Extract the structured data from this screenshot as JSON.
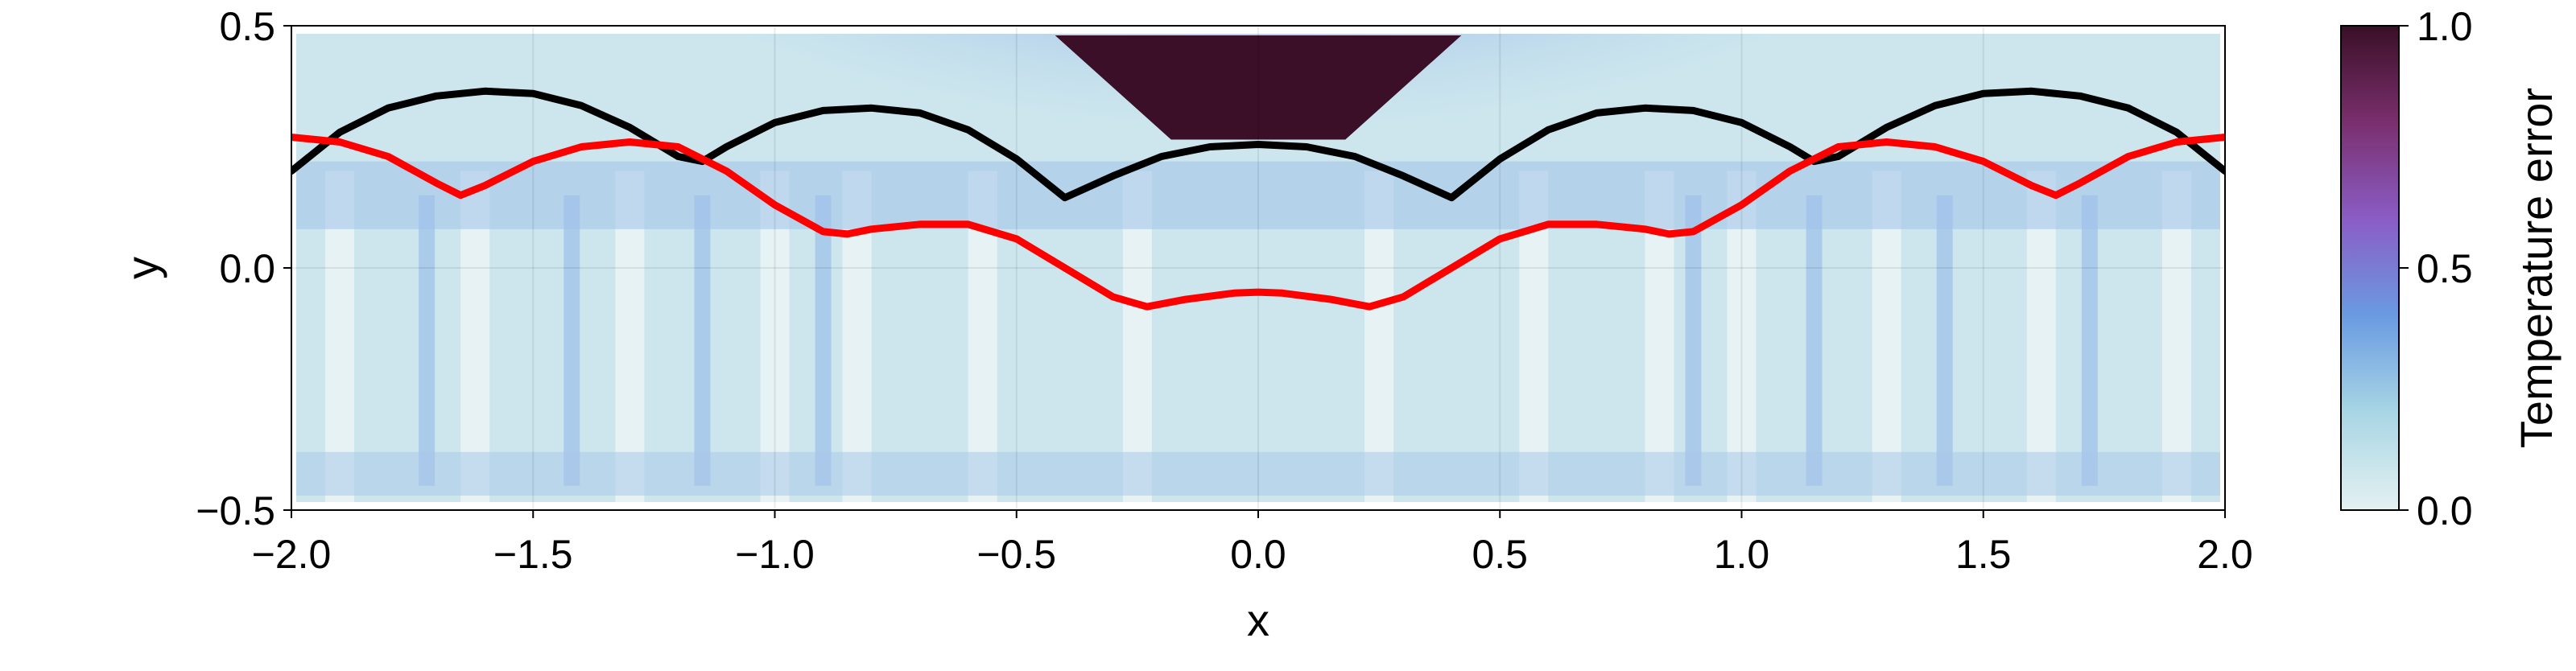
{
  "chart_data": {
    "type": "heatmap",
    "title": "",
    "xlabel": "x",
    "ylabel": "y",
    "xlim": [
      -2.0,
      2.0
    ],
    "ylim": [
      -0.5,
      0.5
    ],
    "x_ticks": [
      -2.0,
      -1.5,
      -1.0,
      -0.5,
      0.0,
      0.5,
      1.0,
      1.5,
      2.0
    ],
    "y_ticks": [
      -0.5,
      0.0,
      0.5
    ],
    "x_tick_labels": [
      "−2.0",
      "−1.5",
      "−1.0",
      "−0.5",
      "0.0",
      "0.5",
      "1.0",
      "1.5",
      "2.0"
    ],
    "y_tick_labels": [
      "−0.5",
      "0.0",
      "0.5"
    ],
    "grid": true,
    "colorbar": {
      "label": "Temperature error",
      "range": [
        0.0,
        1.0
      ],
      "ticks": [
        0.0,
        0.5,
        1.0
      ],
      "tick_labels": [
        "0.0",
        "0.5",
        "1.0"
      ],
      "colormap": [
        "#e4f1f1",
        "#a9d6e5",
        "#6a9be2",
        "#8a5dc6",
        "#7a2f6e",
        "#3a0f27"
      ]
    },
    "heatmap": {
      "description_values": "temperature error field over x in [-2,2], y in [-0.5,0.5]; ~1.0 near top center (|x|<0.42, y>0.2), ~0.15-0.3 mid band, ~0.1 elsewhere",
      "peak_region": {
        "x": [
          -0.42,
          0.42
        ],
        "y": [
          0.26,
          0.48
        ],
        "value": 1.0
      }
    },
    "series": [
      {
        "color": "#000000",
        "x": [
          -2.0,
          -1.9,
          -1.8,
          -1.7,
          -1.6,
          -1.5,
          -1.4,
          -1.3,
          -1.2,
          -1.15,
          -1.1,
          -1.0,
          -0.9,
          -0.8,
          -0.7,
          -0.6,
          -0.5,
          -0.4,
          -0.3,
          -0.2,
          -0.1,
          0.0,
          0.1,
          0.2,
          0.3,
          0.4,
          0.5,
          0.6,
          0.7,
          0.8,
          0.9,
          1.0,
          1.1,
          1.15,
          1.2,
          1.3,
          1.4,
          1.5,
          1.6,
          1.7,
          1.8,
          1.9,
          2.0
        ],
        "y": [
          0.2,
          0.28,
          0.33,
          0.355,
          0.365,
          0.36,
          0.335,
          0.29,
          0.23,
          0.22,
          0.25,
          0.3,
          0.325,
          0.33,
          0.32,
          0.285,
          0.225,
          0.145,
          0.19,
          0.23,
          0.25,
          0.255,
          0.25,
          0.23,
          0.19,
          0.145,
          0.225,
          0.285,
          0.32,
          0.33,
          0.325,
          0.3,
          0.25,
          0.22,
          0.23,
          0.29,
          0.335,
          0.36,
          0.365,
          0.355,
          0.33,
          0.28,
          0.2
        ]
      },
      {
        "color": "#ff0000",
        "x": [
          -2.0,
          -1.9,
          -1.8,
          -1.7,
          -1.65,
          -1.6,
          -1.5,
          -1.4,
          -1.3,
          -1.2,
          -1.1,
          -1.0,
          -0.9,
          -0.85,
          -0.8,
          -0.7,
          -0.6,
          -0.5,
          -0.4,
          -0.3,
          -0.23,
          -0.15,
          -0.05,
          0.0,
          0.05,
          0.15,
          0.23,
          0.3,
          0.4,
          0.5,
          0.6,
          0.7,
          0.8,
          0.85,
          0.9,
          1.0,
          1.1,
          1.2,
          1.3,
          1.4,
          1.5,
          1.6,
          1.65,
          1.7,
          1.8,
          1.9,
          2.0
        ],
        "y": [
          0.27,
          0.26,
          0.23,
          0.175,
          0.15,
          0.17,
          0.22,
          0.25,
          0.26,
          0.25,
          0.2,
          0.13,
          0.075,
          0.07,
          0.08,
          0.09,
          0.09,
          0.06,
          0.0,
          -0.06,
          -0.08,
          -0.065,
          -0.052,
          -0.05,
          -0.052,
          -0.065,
          -0.08,
          -0.06,
          0.0,
          0.06,
          0.09,
          0.09,
          0.08,
          0.07,
          0.075,
          0.13,
          0.2,
          0.25,
          0.26,
          0.25,
          0.22,
          0.17,
          0.15,
          0.175,
          0.23,
          0.26,
          0.27
        ]
      }
    ]
  }
}
